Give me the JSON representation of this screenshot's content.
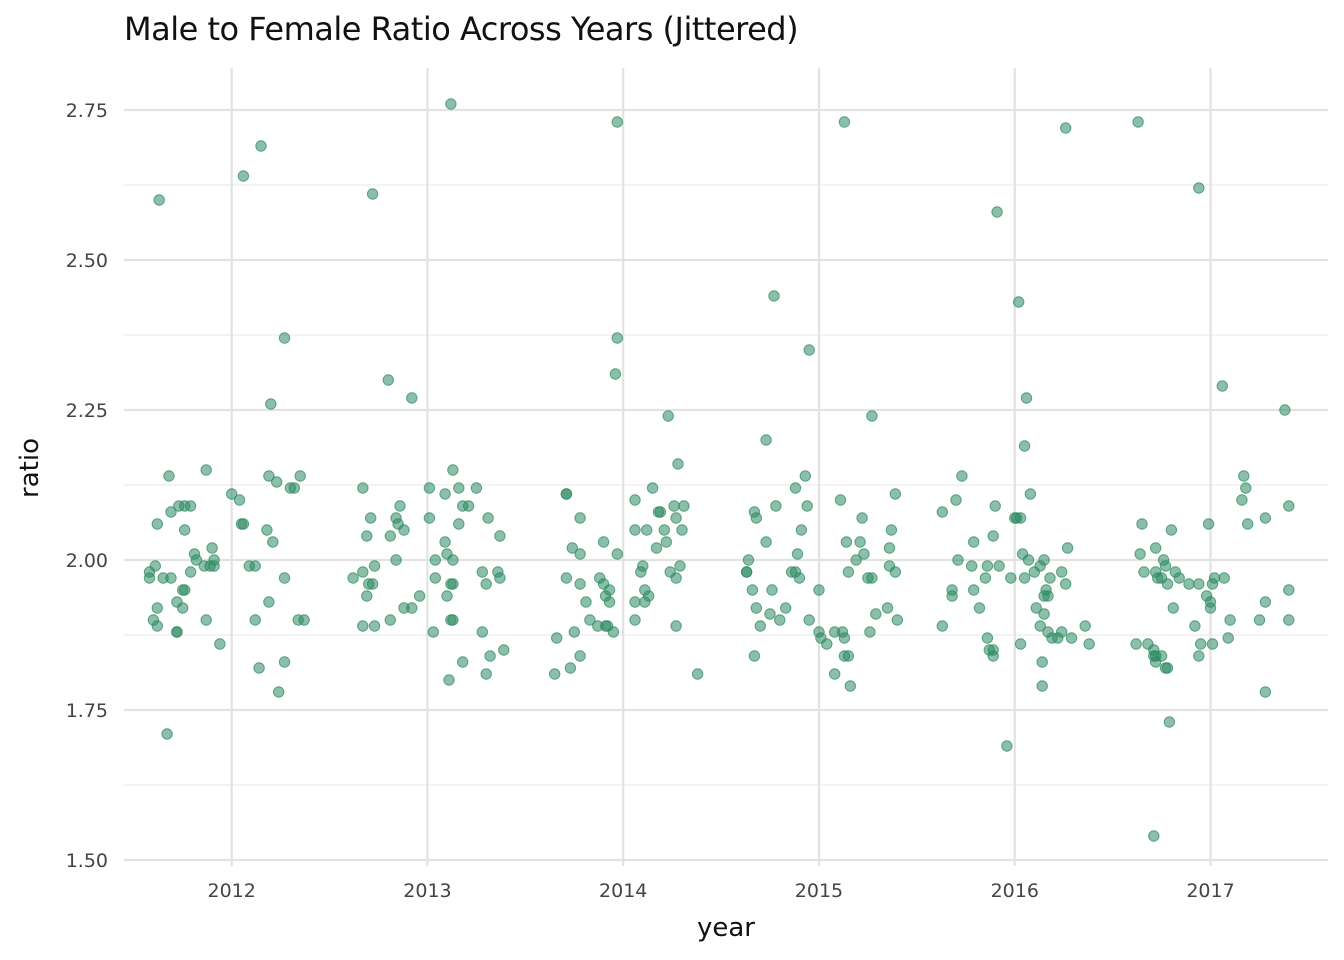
{
  "chart_data": {
    "type": "scatter",
    "title": "Male to Female Ratio Across Years (Jittered)",
    "xlabel": "year",
    "ylabel": "ratio",
    "xlim": [
      2011.45,
      2017.6
    ],
    "ylim": [
      1.49,
      2.82
    ],
    "x_ticks": [
      "2012",
      "2013",
      "2014",
      "2015",
      "2016",
      "2017"
    ],
    "y_ticks": [
      "1.50",
      "1.75",
      "2.00",
      "2.25",
      "2.50",
      "2.75"
    ],
    "grid": true,
    "point_color": "#2e8b63",
    "points": [
      [
        2011.63,
        2.6
      ],
      [
        2011.68,
        2.14
      ],
      [
        2011.62,
        2.06
      ],
      [
        2011.69,
        2.08
      ],
      [
        2011.73,
        2.09
      ],
      [
        2011.76,
        2.09
      ],
      [
        2011.79,
        2.09
      ],
      [
        2011.87,
        2.15
      ],
      [
        2011.61,
        1.99
      ],
      [
        2011.58,
        1.98
      ],
      [
        2011.58,
        1.97
      ],
      [
        2011.65,
        1.97
      ],
      [
        2011.69,
        1.97
      ],
      [
        2011.75,
        1.95
      ],
      [
        2011.76,
        1.95
      ],
      [
        2011.76,
        2.05
      ],
      [
        2011.81,
        2.01
      ],
      [
        2011.82,
        2.0
      ],
      [
        2011.86,
        1.99
      ],
      [
        2011.89,
        1.99
      ],
      [
        2011.9,
        2.02
      ],
      [
        2011.91,
        2.0
      ],
      [
        2011.91,
        1.99
      ],
      [
        2011.79,
        1.98
      ],
      [
        2011.62,
        1.92
      ],
      [
        2011.72,
        1.93
      ],
      [
        2011.75,
        1.92
      ],
      [
        2011.6,
        1.9
      ],
      [
        2011.62,
        1.89
      ],
      [
        2011.72,
        1.88
      ],
      [
        2011.72,
        1.88
      ],
      [
        2011.87,
        1.9
      ],
      [
        2011.94,
        1.86
      ],
      [
        2011.67,
        1.71
      ],
      [
        2012.06,
        2.64
      ],
      [
        2012.15,
        2.69
      ],
      [
        2012.2,
        2.26
      ],
      [
        2012.27,
        2.37
      ],
      [
        2012.0,
        2.11
      ],
      [
        2012.04,
        2.1
      ],
      [
        2012.05,
        2.06
      ],
      [
        2012.06,
        2.06
      ],
      [
        2012.19,
        2.14
      ],
      [
        2012.23,
        2.13
      ],
      [
        2012.3,
        2.12
      ],
      [
        2012.32,
        2.12
      ],
      [
        2012.35,
        2.14
      ],
      [
        2012.18,
        2.05
      ],
      [
        2012.21,
        2.03
      ],
      [
        2012.09,
        1.99
      ],
      [
        2012.12,
        1.99
      ],
      [
        2012.27,
        1.97
      ],
      [
        2012.19,
        1.93
      ],
      [
        2012.12,
        1.9
      ],
      [
        2012.34,
        1.9
      ],
      [
        2012.37,
        1.9
      ],
      [
        2012.14,
        1.82
      ],
      [
        2012.27,
        1.83
      ],
      [
        2012.24,
        1.78
      ],
      [
        2012.72,
        2.61
      ],
      [
        2012.8,
        2.3
      ],
      [
        2012.92,
        2.27
      ],
      [
        2012.67,
        2.12
      ],
      [
        2012.71,
        2.07
      ],
      [
        2012.84,
        2.07
      ],
      [
        2012.85,
        2.06
      ],
      [
        2012.86,
        2.09
      ],
      [
        2012.88,
        2.05
      ],
      [
        2012.69,
        2.04
      ],
      [
        2012.81,
        2.04
      ],
      [
        2012.62,
        1.97
      ],
      [
        2012.67,
        1.98
      ],
      [
        2012.73,
        1.99
      ],
      [
        2012.7,
        1.96
      ],
      [
        2012.72,
        1.96
      ],
      [
        2012.84,
        2.0
      ],
      [
        2012.69,
        1.94
      ],
      [
        2012.67,
        1.89
      ],
      [
        2012.73,
        1.89
      ],
      [
        2012.81,
        1.9
      ],
      [
        2012.88,
        1.92
      ],
      [
        2012.92,
        1.92
      ],
      [
        2012.96,
        1.94
      ],
      [
        2013.12,
        2.76
      ],
      [
        2013.01,
        2.12
      ],
      [
        2013.09,
        2.11
      ],
      [
        2013.13,
        2.15
      ],
      [
        2013.16,
        2.12
      ],
      [
        2013.18,
        2.09
      ],
      [
        2013.21,
        2.09
      ],
      [
        2013.25,
        2.12
      ],
      [
        2013.01,
        2.07
      ],
      [
        2013.09,
        2.03
      ],
      [
        2013.13,
        2.0
      ],
      [
        2013.04,
        2.0
      ],
      [
        2013.1,
        2.01
      ],
      [
        2013.04,
        1.97
      ],
      [
        2013.12,
        1.96
      ],
      [
        2013.13,
        1.96
      ],
      [
        2013.16,
        2.06
      ],
      [
        2013.31,
        2.07
      ],
      [
        2013.37,
        2.04
      ],
      [
        2013.28,
        1.98
      ],
      [
        2013.3,
        1.96
      ],
      [
        2013.36,
        1.98
      ],
      [
        2013.37,
        1.97
      ],
      [
        2013.1,
        1.94
      ],
      [
        2013.12,
        1.9
      ],
      [
        2013.13,
        1.9
      ],
      [
        2013.03,
        1.88
      ],
      [
        2013.28,
        1.88
      ],
      [
        2013.18,
        1.83
      ],
      [
        2013.32,
        1.84
      ],
      [
        2013.39,
        1.85
      ],
      [
        2013.3,
        1.81
      ],
      [
        2013.11,
        1.8
      ],
      [
        2013.71,
        2.11
      ],
      [
        2013.71,
        2.11
      ],
      [
        2013.78,
        2.07
      ],
      [
        2013.74,
        2.02
      ],
      [
        2013.78,
        2.01
      ],
      [
        2013.71,
        1.97
      ],
      [
        2013.78,
        1.96
      ],
      [
        2013.81,
        1.93
      ],
      [
        2013.83,
        1.9
      ],
      [
        2013.87,
        1.89
      ],
      [
        2013.88,
        1.97
      ],
      [
        2013.9,
        1.96
      ],
      [
        2013.91,
        1.94
      ],
      [
        2013.93,
        1.95
      ],
      [
        2013.93,
        1.93
      ],
      [
        2013.91,
        1.89
      ],
      [
        2013.92,
        1.89
      ],
      [
        2013.95,
        1.88
      ],
      [
        2013.9,
        2.03
      ],
      [
        2013.97,
        2.01
      ],
      [
        2013.97,
        2.73
      ],
      [
        2013.97,
        2.37
      ],
      [
        2013.96,
        2.31
      ],
      [
        2013.66,
        1.87
      ],
      [
        2013.75,
        1.88
      ],
      [
        2013.73,
        1.82
      ],
      [
        2013.78,
        1.84
      ],
      [
        2013.65,
        1.81
      ],
      [
        2014.06,
        2.1
      ],
      [
        2014.12,
        2.05
      ],
      [
        2014.15,
        2.12
      ],
      [
        2014.18,
        2.08
      ],
      [
        2014.19,
        2.08
      ],
      [
        2014.21,
        2.05
      ],
      [
        2014.06,
        2.05
      ],
      [
        2014.09,
        1.98
      ],
      [
        2014.1,
        1.99
      ],
      [
        2014.17,
        2.02
      ],
      [
        2014.22,
        2.03
      ],
      [
        2014.24,
        1.98
      ],
      [
        2014.26,
        2.09
      ],
      [
        2014.27,
        2.07
      ],
      [
        2014.28,
        2.16
      ],
      [
        2014.3,
        2.05
      ],
      [
        2014.31,
        2.09
      ],
      [
        2014.29,
        1.99
      ],
      [
        2014.27,
        1.97
      ],
      [
        2014.11,
        1.95
      ],
      [
        2014.06,
        1.93
      ],
      [
        2014.11,
        1.93
      ],
      [
        2014.13,
        1.94
      ],
      [
        2014.06,
        1.9
      ],
      [
        2014.23,
        2.24
      ],
      [
        2014.27,
        1.89
      ],
      [
        2014.38,
        1.81
      ],
      [
        2014.73,
        2.2
      ],
      [
        2014.77,
        2.44
      ],
      [
        2014.67,
        2.08
      ],
      [
        2014.68,
        2.07
      ],
      [
        2014.73,
        2.03
      ],
      [
        2014.78,
        2.09
      ],
      [
        2014.88,
        2.12
      ],
      [
        2014.93,
        2.14
      ],
      [
        2014.94,
        2.09
      ],
      [
        2014.91,
        2.05
      ],
      [
        2014.89,
        2.01
      ],
      [
        2014.86,
        1.98
      ],
      [
        2014.88,
        1.98
      ],
      [
        2014.9,
        1.97
      ],
      [
        2014.64,
        2.0
      ],
      [
        2014.63,
        1.98
      ],
      [
        2014.63,
        1.98
      ],
      [
        2014.66,
        1.95
      ],
      [
        2014.76,
        1.95
      ],
      [
        2014.83,
        1.92
      ],
      [
        2014.68,
        1.92
      ],
      [
        2014.7,
        1.89
      ],
      [
        2014.75,
        1.91
      ],
      [
        2014.8,
        1.9
      ],
      [
        2014.95,
        1.9
      ],
      [
        2014.67,
        1.84
      ],
      [
        2014.95,
        2.35
      ],
      [
        2015.13,
        2.73
      ],
      [
        2015.27,
        2.24
      ],
      [
        2015.11,
        2.1
      ],
      [
        2015.22,
        2.07
      ],
      [
        2015.14,
        2.03
      ],
      [
        2015.21,
        2.03
      ],
      [
        2015.39,
        2.11
      ],
      [
        2015.37,
        2.05
      ],
      [
        2015.36,
        2.02
      ],
      [
        2015.19,
        2.0
      ],
      [
        2015.23,
        2.01
      ],
      [
        2015.36,
        1.99
      ],
      [
        2015.39,
        1.98
      ],
      [
        2015.15,
        1.98
      ],
      [
        2015.25,
        1.97
      ],
      [
        2015.27,
        1.97
      ],
      [
        2015.0,
        1.95
      ],
      [
        2015.0,
        1.88
      ],
      [
        2015.01,
        1.87
      ],
      [
        2015.04,
        1.86
      ],
      [
        2015.08,
        1.88
      ],
      [
        2015.12,
        1.88
      ],
      [
        2015.13,
        1.87
      ],
      [
        2015.13,
        1.84
      ],
      [
        2015.15,
        1.84
      ],
      [
        2015.26,
        1.88
      ],
      [
        2015.29,
        1.91
      ],
      [
        2015.35,
        1.92
      ],
      [
        2015.4,
        1.9
      ],
      [
        2015.08,
        1.81
      ],
      [
        2015.16,
        1.79
      ],
      [
        2015.63,
        2.08
      ],
      [
        2015.73,
        2.14
      ],
      [
        2015.7,
        2.1
      ],
      [
        2015.9,
        2.09
      ],
      [
        2015.79,
        2.03
      ],
      [
        2015.89,
        2.04
      ],
      [
        2015.71,
        2.0
      ],
      [
        2015.78,
        1.99
      ],
      [
        2015.86,
        1.99
      ],
      [
        2015.92,
        1.99
      ],
      [
        2015.79,
        1.95
      ],
      [
        2015.85,
        1.97
      ],
      [
        2015.68,
        1.95
      ],
      [
        2015.68,
        1.94
      ],
      [
        2015.82,
        1.92
      ],
      [
        2015.63,
        1.89
      ],
      [
        2015.86,
        1.87
      ],
      [
        2015.87,
        1.85
      ],
      [
        2015.89,
        1.85
      ],
      [
        2015.89,
        1.84
      ],
      [
        2015.91,
        2.58
      ],
      [
        2015.96,
        1.69
      ],
      [
        2016.02,
        2.43
      ],
      [
        2016.06,
        2.27
      ],
      [
        2016.05,
        2.19
      ],
      [
        2016.08,
        2.11
      ],
      [
        2016.0,
        2.07
      ],
      [
        2016.01,
        2.07
      ],
      [
        2016.03,
        2.07
      ],
      [
        2016.04,
        2.01
      ],
      [
        2016.07,
        2.0
      ],
      [
        2016.13,
        1.99
      ],
      [
        2016.15,
        2.0
      ],
      [
        2016.27,
        2.02
      ],
      [
        2016.1,
        1.98
      ],
      [
        2016.18,
        1.97
      ],
      [
        2016.24,
        1.98
      ],
      [
        2016.26,
        1.96
      ],
      [
        2015.98,
        1.97
      ],
      [
        2016.05,
        1.97
      ],
      [
        2016.16,
        1.95
      ],
      [
        2016.17,
        1.94
      ],
      [
        2016.15,
        1.94
      ],
      [
        2016.11,
        1.92
      ],
      [
        2016.15,
        1.91
      ],
      [
        2016.13,
        1.89
      ],
      [
        2016.17,
        1.88
      ],
      [
        2016.19,
        1.87
      ],
      [
        2016.22,
        1.87
      ],
      [
        2016.24,
        1.88
      ],
      [
        2016.29,
        1.87
      ],
      [
        2016.36,
        1.89
      ],
      [
        2016.38,
        1.86
      ],
      [
        2016.03,
        1.86
      ],
      [
        2016.14,
        1.83
      ],
      [
        2016.14,
        1.79
      ],
      [
        2016.26,
        2.72
      ],
      [
        2016.63,
        2.73
      ],
      [
        2016.65,
        2.06
      ],
      [
        2016.64,
        2.01
      ],
      [
        2016.72,
        2.02
      ],
      [
        2016.76,
        2.0
      ],
      [
        2016.8,
        2.05
      ],
      [
        2016.66,
        1.98
      ],
      [
        2016.72,
        1.98
      ],
      [
        2016.73,
        1.97
      ],
      [
        2016.75,
        1.97
      ],
      [
        2016.77,
        1.99
      ],
      [
        2016.78,
        1.96
      ],
      [
        2016.82,
        1.98
      ],
      [
        2016.84,
        1.97
      ],
      [
        2016.89,
        1.96
      ],
      [
        2016.94,
        1.96
      ],
      [
        2016.81,
        1.92
      ],
      [
        2016.62,
        1.86
      ],
      [
        2016.68,
        1.86
      ],
      [
        2016.71,
        1.85
      ],
      [
        2016.71,
        1.84
      ],
      [
        2016.72,
        1.84
      ],
      [
        2016.75,
        1.84
      ],
      [
        2016.77,
        1.82
      ],
      [
        2016.78,
        1.82
      ],
      [
        2016.72,
        1.83
      ],
      [
        2016.79,
        1.73
      ],
      [
        2016.71,
        1.54
      ],
      [
        2016.92,
        1.89
      ],
      [
        2016.95,
        1.86
      ],
      [
        2016.94,
        1.84
      ],
      [
        2016.94,
        2.62
      ],
      [
        2017.06,
        2.29
      ],
      [
        2017.17,
        2.14
      ],
      [
        2017.16,
        2.1
      ],
      [
        2017.18,
        2.12
      ],
      [
        2017.19,
        2.06
      ],
      [
        2017.28,
        2.07
      ],
      [
        2016.99,
        2.06
      ],
      [
        2016.98,
        1.94
      ],
      [
        2017.0,
        1.92
      ],
      [
        2017.01,
        1.96
      ],
      [
        2017.02,
        1.97
      ],
      [
        2017.07,
        1.97
      ],
      [
        2017.0,
        1.93
      ],
      [
        2017.01,
        1.86
      ],
      [
        2017.09,
        1.87
      ],
      [
        2017.1,
        1.9
      ],
      [
        2017.25,
        1.9
      ],
      [
        2017.28,
        1.93
      ],
      [
        2017.28,
        1.78
      ],
      [
        2017.38,
        2.25
      ],
      [
        2017.4,
        2.09
      ],
      [
        2017.4,
        1.95
      ],
      [
        2017.4,
        1.9
      ]
    ]
  }
}
